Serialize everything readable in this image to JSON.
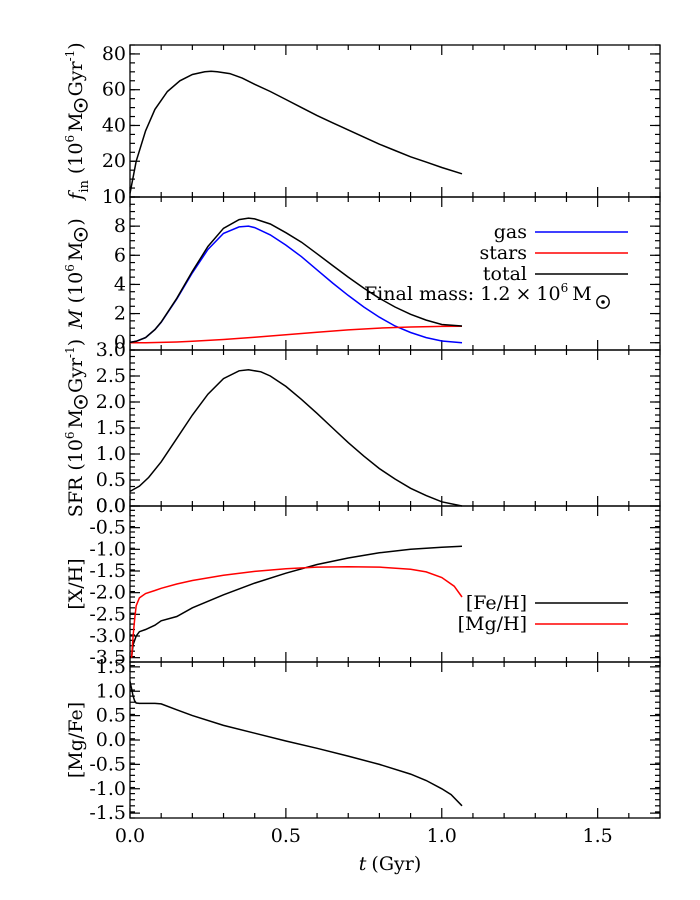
{
  "chart_data": [
    {
      "type": "line",
      "ylabel_parts": {
        "a": "f",
        "b": "in",
        "c": "(10",
        "d": "6",
        "e": "M",
        "f": "Gyr",
        "g": "-1",
        "h": ")"
      },
      "xlim": [
        0,
        1.7
      ],
      "ylim": [
        0,
        85
      ],
      "yticks": [
        {
          "v": 0,
          "label": "0"
        },
        {
          "v": 20,
          "label": "20"
        },
        {
          "v": 40,
          "label": "40"
        },
        {
          "v": 60,
          "label": "60"
        },
        {
          "v": 80,
          "label": "80"
        }
      ],
      "series": [
        {
          "color": "#000000",
          "x": [
            0.0,
            0.02,
            0.05,
            0.08,
            0.12,
            0.16,
            0.2,
            0.24,
            0.26,
            0.28,
            0.32,
            0.36,
            0.4,
            0.45,
            0.5,
            0.55,
            0.6,
            0.65,
            0.7,
            0.75,
            0.8,
            0.85,
            0.9,
            0.95,
            1.0,
            1.065
          ],
          "y": [
            2,
            20,
            37,
            49,
            59,
            65,
            68.5,
            70,
            70.3,
            70,
            69,
            66.5,
            63,
            59,
            54.5,
            50,
            45.5,
            41.5,
            37.5,
            33.5,
            29.5,
            26,
            22.5,
            19.5,
            16.5,
            13
          ]
        }
      ]
    },
    {
      "type": "line",
      "ylabel_parts": {
        "a": "M",
        "c": "(10",
        "d": "6",
        "e": "M",
        "h": ")"
      },
      "xlim": [
        0,
        1.7
      ],
      "ylim": [
        -0.5,
        10
      ],
      "yticks": [
        {
          "v": 0,
          "label": "0"
        },
        {
          "v": 2,
          "label": "2"
        },
        {
          "v": 4,
          "label": "4"
        },
        {
          "v": 6,
          "label": "6"
        },
        {
          "v": 8,
          "label": "8"
        },
        {
          "v": 10,
          "label": "10"
        }
      ],
      "legend": [
        {
          "label": "gas",
          "color": "#0000ff"
        },
        {
          "label": "stars",
          "color": "#ff0000"
        },
        {
          "label": "total",
          "color": "#000000"
        }
      ],
      "annotation": {
        "prefix": "Final mass: 1.2",
        "times": "×",
        "base": "10",
        "exp": "6",
        "unit": "M"
      },
      "series": [
        {
          "name": "gas",
          "color": "#0000ff",
          "x": [
            0.0,
            0.02,
            0.05,
            0.08,
            0.1,
            0.15,
            0.2,
            0.25,
            0.3,
            0.35,
            0.38,
            0.4,
            0.45,
            0.5,
            0.55,
            0.6,
            0.65,
            0.7,
            0.75,
            0.8,
            0.85,
            0.9,
            0.95,
            1.0,
            1.065
          ],
          "y": [
            0.02,
            0.1,
            0.35,
            0.9,
            1.4,
            3.0,
            4.8,
            6.4,
            7.5,
            7.95,
            8.0,
            7.9,
            7.4,
            6.7,
            5.9,
            5.0,
            4.1,
            3.25,
            2.45,
            1.75,
            1.15,
            0.7,
            0.35,
            0.12,
            0.0
          ]
        },
        {
          "name": "stars",
          "color": "#ff0000",
          "x": [
            0.0,
            0.05,
            0.1,
            0.15,
            0.2,
            0.3,
            0.4,
            0.5,
            0.6,
            0.7,
            0.8,
            0.9,
            1.0,
            1.065
          ],
          "y": [
            0.0,
            0.0,
            0.02,
            0.05,
            0.1,
            0.22,
            0.38,
            0.55,
            0.72,
            0.88,
            1.0,
            1.08,
            1.12,
            1.13
          ]
        },
        {
          "name": "total",
          "color": "#000000",
          "x": [
            0.0,
            0.02,
            0.05,
            0.08,
            0.1,
            0.15,
            0.2,
            0.25,
            0.3,
            0.35,
            0.38,
            0.4,
            0.45,
            0.5,
            0.55,
            0.6,
            0.65,
            0.7,
            0.75,
            0.8,
            0.85,
            0.9,
            0.95,
            1.0,
            1.065
          ],
          "y": [
            0.02,
            0.1,
            0.35,
            0.9,
            1.42,
            3.05,
            4.9,
            6.6,
            7.85,
            8.45,
            8.55,
            8.5,
            8.15,
            7.55,
            6.9,
            6.1,
            5.3,
            4.5,
            3.75,
            3.05,
            2.45,
            1.95,
            1.55,
            1.25,
            1.15
          ]
        }
      ]
    },
    {
      "type": "line",
      "ylabel_parts": {
        "a": "SFR",
        "c": "(10",
        "d": "6",
        "e": "M",
        "f": "Gyr",
        "g": "-1",
        "h": ")"
      },
      "xlim": [
        0,
        1.7
      ],
      "ylim": [
        0,
        3.0
      ],
      "yticks": [
        {
          "v": 0.0,
          "label": "0.0"
        },
        {
          "v": 0.5,
          "label": "0.5"
        },
        {
          "v": 1.0,
          "label": "1.0"
        },
        {
          "v": 1.5,
          "label": "1.5"
        },
        {
          "v": 2.0,
          "label": "2.0"
        },
        {
          "v": 2.5,
          "label": "2.5"
        },
        {
          "v": 3.0,
          "label": "3.0"
        }
      ],
      "series": [
        {
          "color": "#000000",
          "x": [
            0.0,
            0.03,
            0.06,
            0.1,
            0.15,
            0.2,
            0.25,
            0.3,
            0.35,
            0.38,
            0.42,
            0.45,
            0.5,
            0.55,
            0.6,
            0.65,
            0.7,
            0.75,
            0.8,
            0.85,
            0.9,
            0.95,
            1.0,
            1.065
          ],
          "y": [
            0.28,
            0.38,
            0.55,
            0.85,
            1.3,
            1.75,
            2.15,
            2.45,
            2.6,
            2.62,
            2.58,
            2.5,
            2.3,
            2.05,
            1.78,
            1.5,
            1.22,
            0.96,
            0.72,
            0.52,
            0.34,
            0.2,
            0.08,
            0.0
          ]
        }
      ]
    },
    {
      "type": "line",
      "ylabel_parts": {
        "a": "[X/H]"
      },
      "xlim": [
        0,
        1.7
      ],
      "ylim": [
        -3.6,
        0.0
      ],
      "yticks": [
        {
          "v": -3.5,
          "label": "-3.5"
        },
        {
          "v": -3.0,
          "label": "-3.0"
        },
        {
          "v": -2.5,
          "label": "-2.5"
        },
        {
          "v": -2.0,
          "label": "-2.0"
        },
        {
          "v": -1.5,
          "label": "-1.5"
        },
        {
          "v": -1.0,
          "label": "-1.0"
        },
        {
          "v": -0.5,
          "label": "-0.5"
        },
        {
          "v": 0.0,
          "label": "0.0"
        }
      ],
      "legend": [
        {
          "label": "[Fe/H]",
          "color": "#000000"
        },
        {
          "label": "[Mg/H]",
          "color": "#ff0000"
        }
      ],
      "series": [
        {
          "name": "[Fe/H]",
          "color": "#000000",
          "x": [
            0.005,
            0.01,
            0.02,
            0.03,
            0.05,
            0.08,
            0.1,
            0.15,
            0.2,
            0.3,
            0.4,
            0.5,
            0.6,
            0.7,
            0.8,
            0.9,
            1.0,
            1.065
          ],
          "y": [
            -3.5,
            -3.2,
            -3.0,
            -2.9,
            -2.85,
            -2.75,
            -2.65,
            -2.55,
            -2.35,
            -2.05,
            -1.78,
            -1.55,
            -1.35,
            -1.2,
            -1.08,
            -1.0,
            -0.95,
            -0.93
          ]
        },
        {
          "name": "[Mg/H]",
          "color": "#ff0000",
          "x": [
            0.005,
            0.01,
            0.015,
            0.02,
            0.03,
            0.05,
            0.08,
            0.1,
            0.15,
            0.2,
            0.3,
            0.4,
            0.5,
            0.6,
            0.7,
            0.8,
            0.9,
            0.95,
            1.0,
            1.04,
            1.065
          ],
          "y": [
            -3.5,
            -3.0,
            -2.6,
            -2.3,
            -2.12,
            -2.02,
            -1.95,
            -1.9,
            -1.8,
            -1.72,
            -1.6,
            -1.51,
            -1.45,
            -1.41,
            -1.4,
            -1.41,
            -1.46,
            -1.52,
            -1.65,
            -1.85,
            -2.1
          ]
        }
      ]
    },
    {
      "type": "line",
      "ylabel_parts": {
        "a": "[Mg/Fe]"
      },
      "xlabel_parts": {
        "a": "t",
        "b": "(Gyr)"
      },
      "xlim": [
        0,
        1.7
      ],
      "ylim": [
        -1.6,
        1.6
      ],
      "xticks": [
        {
          "v": 0.0,
          "label": "0.0"
        },
        {
          "v": 0.5,
          "label": "0.5"
        },
        {
          "v": 1.0,
          "label": "1.0"
        },
        {
          "v": 1.5,
          "label": "1.5"
        }
      ],
      "yticks": [
        {
          "v": -1.5,
          "label": "-1.5"
        },
        {
          "v": -1.0,
          "label": "-1.0"
        },
        {
          "v": -0.5,
          "label": "-0.5"
        },
        {
          "v": 0.0,
          "label": "0.0"
        },
        {
          "v": 0.5,
          "label": "0.5"
        },
        {
          "v": 1.0,
          "label": "1.0"
        },
        {
          "v": 1.5,
          "label": "1.5"
        }
      ],
      "series": [
        {
          "color": "#000000",
          "x": [
            0.0,
            0.005,
            0.01,
            0.015,
            0.02,
            0.03,
            0.05,
            0.08,
            0.1,
            0.15,
            0.2,
            0.3,
            0.4,
            0.5,
            0.6,
            0.7,
            0.8,
            0.9,
            0.95,
            1.0,
            1.03,
            1.065
          ],
          "y": [
            1.2,
            1.05,
            0.9,
            0.8,
            0.76,
            0.75,
            0.75,
            0.75,
            0.74,
            0.62,
            0.5,
            0.3,
            0.14,
            -0.02,
            -0.17,
            -0.33,
            -0.5,
            -0.7,
            -0.83,
            -1.0,
            -1.12,
            -1.35
          ]
        }
      ]
    }
  ]
}
